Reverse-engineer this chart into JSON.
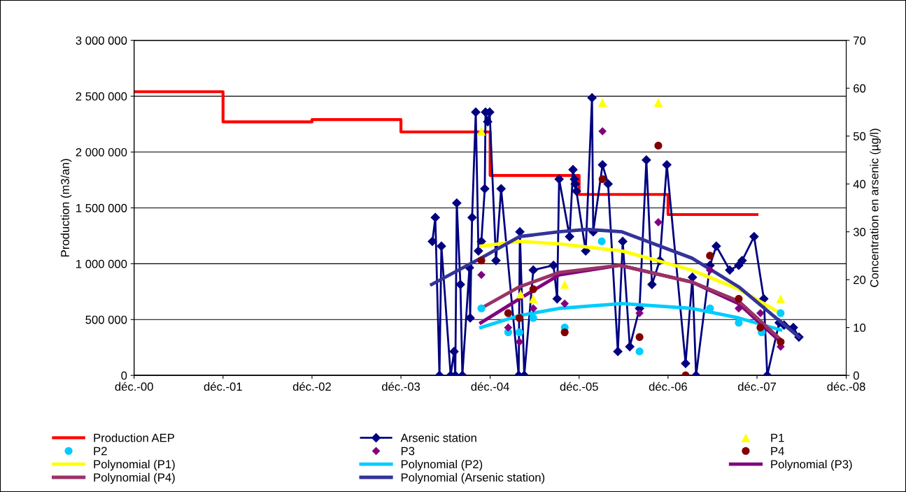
{
  "chart_data": {
    "type": "line",
    "ylabel": "Production (m3/an)",
    "y2label": "Concentration en arsenic (µg/l)",
    "xlim": [
      "2000-12",
      "2008-12"
    ],
    "xticks": [
      {
        "value": "2000-12",
        "label": "déc.-00"
      },
      {
        "value": "2001-12",
        "label": "déc.-01"
      },
      {
        "value": "2002-12",
        "label": "déc.-02"
      },
      {
        "value": "2003-12",
        "label": "déc.-03"
      },
      {
        "value": "2004-12",
        "label": "déc.-04"
      },
      {
        "value": "2005-12",
        "label": "déc.-05"
      },
      {
        "value": "2006-12",
        "label": "déc.-06"
      },
      {
        "value": "2007-12",
        "label": "déc.-07"
      },
      {
        "value": "2008-12",
        "label": "déc.-08"
      }
    ],
    "ylim": [
      0,
      3000000
    ],
    "yticks": [
      {
        "value": 0,
        "label": "0"
      },
      {
        "value": 500000,
        "label": "500 000"
      },
      {
        "value": 1000000,
        "label": "1 000 000"
      },
      {
        "value": 1500000,
        "label": "1 500 000"
      },
      {
        "value": 2000000,
        "label": "2 000 000"
      },
      {
        "value": 2500000,
        "label": "2 500 000"
      },
      {
        "value": 3000000,
        "label": "3 000 000"
      }
    ],
    "y2lim": [
      0,
      70
    ],
    "y2ticks": [
      0,
      10,
      20,
      30,
      40,
      50,
      60,
      70
    ],
    "grid": "y",
    "legend": "bottom",
    "series": [
      {
        "name": "Production AEP",
        "type": "step",
        "color": "#ff0000",
        "marker": "none",
        "x": [
          "2000-12",
          "2001-12",
          "2002-12",
          "2003-12",
          "2004-12",
          "2005-12",
          "2006-12",
          "2007-12"
        ],
        "values": [
          2540000,
          2270000,
          2290000,
          2180000,
          1790000,
          1620000,
          1440000,
          1440000
        ]
      },
      {
        "name": "Arsenic station",
        "axis": "y2",
        "color": "#000080",
        "marker": "diamond",
        "x": [
          "2004-04-08",
          "2004-04-20",
          "2004-05-07",
          "2004-05-15",
          "2004-06-22",
          "2004-07-06",
          "2004-07-11",
          "2004-07-17",
          "2004-08-01",
          "2004-08-09",
          "2004-09-07",
          "2004-09-10",
          "2004-09-18",
          "2004-10-03",
          "2004-10-14",
          "2004-10-26",
          "2004-11-09",
          "2004-11-12",
          "2004-11-21",
          "2004-11-29",
          "2004-12-25",
          "2005-01-15",
          "2005-03-28",
          "2005-04-02",
          "2005-04-20",
          "2005-05-27",
          "2005-08-18",
          "2005-09-02",
          "2005-09-10",
          "2005-10-23",
          "2005-11-06",
          "2005-11-12",
          "2005-11-15",
          "2005-11-20",
          "2005-12-28",
          "2006-01-23",
          "2006-01-28",
          "2006-03-07",
          "2006-03-30",
          "2006-05-09",
          "2006-05-29",
          "2006-06-27",
          "2006-08-06",
          "2006-09-03",
          "2006-09-26",
          "2006-10-28",
          "2006-11-26",
          "2007-02-11",
          "2007-03-11",
          "2007-03-26",
          "2007-05-22",
          "2007-06-17",
          "2007-08-11",
          "2007-09-17",
          "2007-10-01",
          "2007-11-19",
          "2007-12-29",
          "2008-01-12",
          "2008-03-01",
          "2008-03-21",
          "2008-04-28",
          "2008-05-21"
        ],
        "values": [
          28,
          33,
          0,
          27,
          0,
          5,
          0,
          36,
          19,
          0,
          22.5,
          12,
          33,
          55,
          26,
          28,
          39,
          55,
          53,
          55,
          24,
          39,
          0,
          30,
          0,
          22,
          23,
          16,
          41,
          29,
          43,
          41,
          40,
          38.5,
          26,
          58,
          30,
          44,
          40,
          5,
          28,
          6,
          14,
          45,
          19,
          24,
          44,
          2.5,
          20.5,
          0,
          23,
          27,
          22,
          23,
          24,
          29,
          16,
          0,
          11,
          10.5,
          10,
          8
        ]
      },
      {
        "name": "P1",
        "type": "scatter",
        "axis": "y2",
        "color": "#ffff00",
        "marker": "triangle",
        "x": [
          "2004-10-26",
          "2005-04-05",
          "2005-05-27",
          "2005-10-03",
          "2006-03-07",
          "2006-10-22",
          "2008-03-07"
        ],
        "values": [
          51,
          17,
          16,
          19,
          57,
          57,
          16
        ]
      },
      {
        "name": "P2",
        "type": "scatter",
        "axis": "y2",
        "color": "#00ccff",
        "marker": "circle",
        "x": [
          "2004-10-26",
          "2005-02-13",
          "2005-03-31",
          "2005-05-27",
          "2005-10-03",
          "2006-03-04",
          "2006-08-06",
          "2007-05-22",
          "2007-09-17",
          "2007-12-20",
          "2008-03-07"
        ],
        "values": [
          14,
          9,
          9,
          12,
          10,
          28,
          5,
          14,
          11,
          9,
          13
        ]
      },
      {
        "name": "P3",
        "type": "scatter",
        "axis": "y2",
        "color": "#800080",
        "marker": "diamond",
        "x": [
          "2004-10-26",
          "2005-02-13",
          "2005-03-31",
          "2005-05-27",
          "2005-10-03",
          "2006-03-07",
          "2006-08-06",
          "2006-10-22",
          "2007-05-22",
          "2007-09-17",
          "2007-12-15",
          "2008-03-07"
        ],
        "values": [
          21,
          10,
          7,
          14,
          15,
          51,
          13,
          32,
          22,
          14,
          13,
          6
        ]
      },
      {
        "name": "P4",
        "type": "scatter",
        "axis": "y2",
        "color": "#800000",
        "marker": "circle",
        "x": [
          "2004-10-26",
          "2005-02-13",
          "2005-03-31",
          "2005-05-27",
          "2005-10-03",
          "2006-03-07",
          "2006-08-06",
          "2006-10-22",
          "2007-02-11",
          "2007-05-22",
          "2007-09-17",
          "2007-12-15",
          "2008-03-07"
        ],
        "values": [
          24,
          13,
          12,
          18,
          9,
          41,
          8,
          48,
          0,
          25,
          16,
          10,
          7
        ]
      },
      {
        "name": "Polynomial (P1)",
        "axis": "y2",
        "color": "#ffff00",
        "marker": "none",
        "x": [
          "2004-10-24",
          "2005-03-31",
          "2005-09-10",
          "2006-05-26",
          "2007-03-09",
          "2007-09-17",
          "2008-03-07"
        ],
        "values": [
          27,
          28,
          27.5,
          26,
          22,
          18,
          13
        ]
      },
      {
        "name": "Polynomial (P2)",
        "axis": "y2",
        "color": "#00ccff",
        "marker": "none",
        "x": [
          "2004-10-24",
          "2005-03-31",
          "2005-09-10",
          "2006-05-26",
          "2007-03-09",
          "2007-09-17",
          "2008-03-07"
        ],
        "values": [
          10,
          12.5,
          14,
          15,
          14,
          12,
          9.5
        ]
      },
      {
        "name": "Polynomial (P3)",
        "axis": "y2",
        "color": "#800080",
        "marker": "none",
        "x": [
          "2004-10-24",
          "2005-03-31",
          "2005-09-10",
          "2006-05-17",
          "2007-03-09",
          "2007-09-17",
          "2008-03-07"
        ],
        "values": [
          11,
          16,
          21,
          23,
          19.5,
          15,
          7
        ]
      },
      {
        "name": "Polynomial (P4)",
        "axis": "y2",
        "color": "#993366",
        "marker": "none",
        "x": [
          "2004-10-24",
          "2005-03-31",
          "2005-09-10",
          "2006-05-17",
          "2007-03-09",
          "2007-09-17",
          "2008-03-07"
        ],
        "values": [
          14,
          18.5,
          21.5,
          23,
          19.5,
          15.5,
          7.5
        ]
      },
      {
        "name": "Polynomial (Arsenic station)",
        "axis": "y2",
        "color": "#333399",
        "marker": "none",
        "x": [
          "2004-04-05",
          "2004-10-24",
          "2005-03-31",
          "2005-09-10",
          "2006-01-03",
          "2006-05-26",
          "2007-03-09",
          "2007-09-17",
          "2008-05-21"
        ],
        "values": [
          19,
          24.5,
          29,
          30,
          30.5,
          30,
          24.5,
          18.5,
          8
        ]
      }
    ]
  }
}
